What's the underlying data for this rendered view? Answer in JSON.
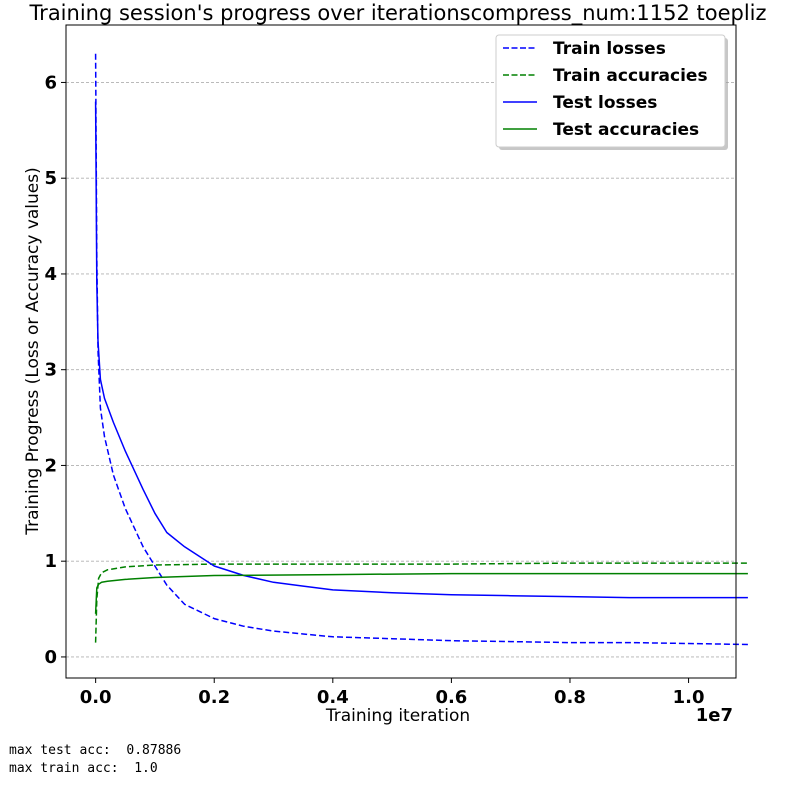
{
  "chart_data": {
    "type": "line",
    "title": "Training session's progress over iterationscompress_num:1152 toepliz",
    "xlabel": "Training iteration",
    "ylabel": "Training Progress (Loss or Accuracy values)",
    "x_offset_label": "1e7",
    "xlim": [
      -0.05,
      1.08
    ],
    "ylim": [
      -0.22,
      6.6
    ],
    "x_ticks": [
      0.0,
      0.2,
      0.4,
      0.6,
      0.8,
      1.0
    ],
    "x_tick_labels": [
      "0.0",
      "0.2",
      "0.4",
      "0.6",
      "0.8",
      "1.0"
    ],
    "y_ticks": [
      0,
      1,
      2,
      3,
      4,
      5,
      6
    ],
    "y_tick_labels": [
      "0",
      "1",
      "2",
      "3",
      "4",
      "5",
      "6"
    ],
    "grid": "horizontal dashed",
    "legend_position": "top-right",
    "series": [
      {
        "name": "Train losses",
        "color": "#0000ff",
        "style": "dashed",
        "x": [
          0.0,
          0.002,
          0.004,
          0.008,
          0.015,
          0.03,
          0.05,
          0.08,
          0.1,
          0.12,
          0.15,
          0.2,
          0.25,
          0.3,
          0.35,
          0.4,
          0.5,
          0.6,
          0.7,
          0.8,
          0.9,
          1.0,
          1.1
        ],
        "y": [
          6.3,
          4.2,
          3.2,
          2.6,
          2.3,
          1.9,
          1.55,
          1.15,
          0.95,
          0.75,
          0.55,
          0.4,
          0.32,
          0.27,
          0.24,
          0.21,
          0.19,
          0.17,
          0.16,
          0.15,
          0.15,
          0.14,
          0.13
        ]
      },
      {
        "name": "Train accuracies",
        "color": "#008000",
        "style": "dashed",
        "x": [
          0.0,
          0.002,
          0.005,
          0.01,
          0.02,
          0.05,
          0.1,
          0.2,
          0.4,
          0.6,
          0.8,
          1.0,
          1.1
        ],
        "y": [
          0.15,
          0.6,
          0.82,
          0.88,
          0.91,
          0.94,
          0.96,
          0.97,
          0.97,
          0.97,
          0.98,
          0.98,
          0.98
        ]
      },
      {
        "name": "Test losses",
        "color": "#0000ff",
        "style": "solid",
        "x": [
          0.0,
          0.002,
          0.004,
          0.008,
          0.015,
          0.03,
          0.05,
          0.08,
          0.1,
          0.12,
          0.15,
          0.2,
          0.25,
          0.3,
          0.35,
          0.4,
          0.5,
          0.6,
          0.7,
          0.8,
          0.9,
          1.0,
          1.1
        ],
        "y": [
          5.8,
          3.9,
          3.3,
          2.9,
          2.7,
          2.45,
          2.15,
          1.75,
          1.5,
          1.3,
          1.15,
          0.95,
          0.85,
          0.78,
          0.74,
          0.7,
          0.67,
          0.65,
          0.64,
          0.63,
          0.62,
          0.62,
          0.62
        ]
      },
      {
        "name": "Test accuracies",
        "color": "#008000",
        "style": "solid",
        "x": [
          0.0,
          0.002,
          0.005,
          0.01,
          0.02,
          0.05,
          0.1,
          0.2,
          0.4,
          0.6,
          0.8,
          1.0,
          1.1
        ],
        "y": [
          0.45,
          0.72,
          0.76,
          0.78,
          0.79,
          0.81,
          0.83,
          0.85,
          0.86,
          0.87,
          0.87,
          0.87,
          0.87
        ]
      }
    ]
  },
  "output": {
    "max_test_acc": "max test acc:  0.87886",
    "max_train_acc": "max train acc:  1.0"
  }
}
